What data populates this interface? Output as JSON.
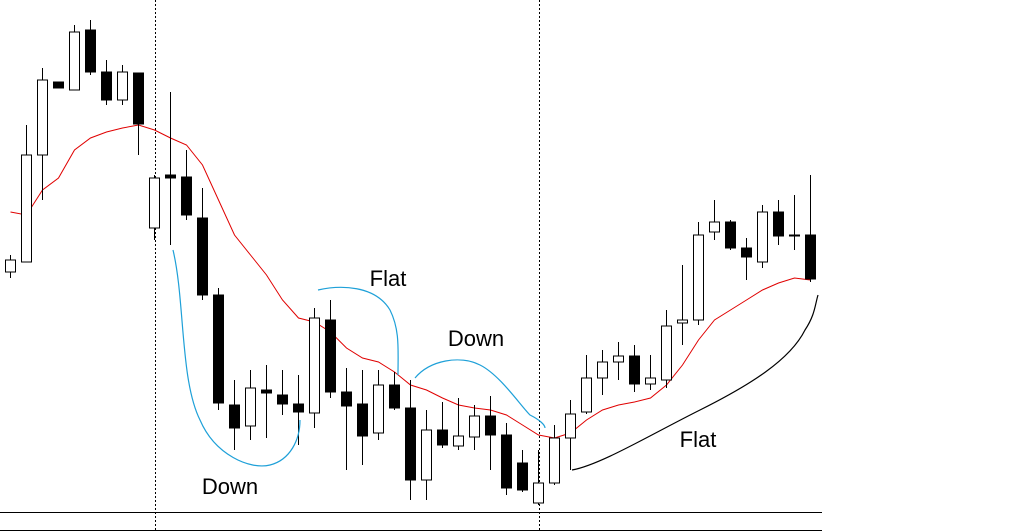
{
  "chart_data": {
    "type": "candlestick",
    "ylim": [
      0,
      532
    ],
    "up_color": "#ffffff",
    "down_color": "#000000",
    "edge_color": "#000000",
    "open": [
      260,
      270,
      377,
      450,
      442,
      502,
      460,
      432,
      459,
      304,
      357,
      355,
      314,
      237,
      127,
      106,
      142,
      137,
      128,
      119,
      212,
      140,
      128,
      99,
      147,
      124,
      52,
      102,
      86,
      95,
      116,
      97,
      69,
      29,
      49,
      94,
      120,
      154,
      170,
      176,
      148,
      152,
      209,
      212,
      300,
      310,
      284,
      270,
      320,
      297,
      297
    ],
    "high": [
      277,
      407,
      464,
      450,
      507,
      512,
      472,
      467,
      459,
      357,
      440,
      382,
      344,
      244,
      152,
      162,
      167,
      162,
      157,
      224,
      232,
      164,
      162,
      162,
      160,
      152,
      122,
      130,
      134,
      127,
      136,
      109,
      82,
      82,
      107,
      132,
      177,
      182,
      190,
      187,
      177,
      222,
      267,
      310,
      332,
      312,
      294,
      327,
      332,
      337,
      357
    ],
    "low": [
      254,
      270,
      332,
      444,
      442,
      457,
      427,
      427,
      377,
      292,
      287,
      312,
      232,
      122,
      82,
      92,
      94,
      117,
      87,
      104,
      134,
      62,
      67,
      92,
      122,
      32,
      32,
      84,
      82,
      82,
      62,
      37,
      40,
      27,
      47,
      62,
      118,
      137,
      152,
      140,
      142,
      144,
      187,
      207,
      292,
      282,
      252,
      264,
      287,
      282,
      250
    ],
    "close": [
      272,
      377,
      452,
      444,
      500,
      460,
      432,
      460,
      408,
      354,
      354,
      317,
      237,
      129,
      104,
      144,
      139,
      128,
      120,
      214,
      140,
      126,
      96,
      147,
      124,
      52,
      102,
      87,
      96,
      116,
      97,
      44,
      42,
      49,
      94,
      118,
      154,
      170,
      176,
      148,
      154,
      206,
      212,
      297,
      310,
      284,
      275,
      320,
      296,
      296,
      253
    ],
    "ma": {
      "color": "#e00000",
      "values": [
        320,
        317,
        342,
        354,
        382,
        394,
        400,
        404,
        407,
        402,
        394,
        387,
        367,
        332,
        297,
        277,
        257,
        232,
        214,
        210,
        200,
        184,
        174,
        170,
        160,
        147,
        142,
        134,
        127,
        124,
        122,
        117,
        107,
        97,
        94,
        99,
        112,
        122,
        127,
        130,
        134,
        147,
        167,
        192,
        212,
        222,
        232,
        242,
        249,
        254,
        252
      ]
    },
    "annotations": [
      "Flat",
      "Down",
      "Down",
      "Flat"
    ]
  }
}
